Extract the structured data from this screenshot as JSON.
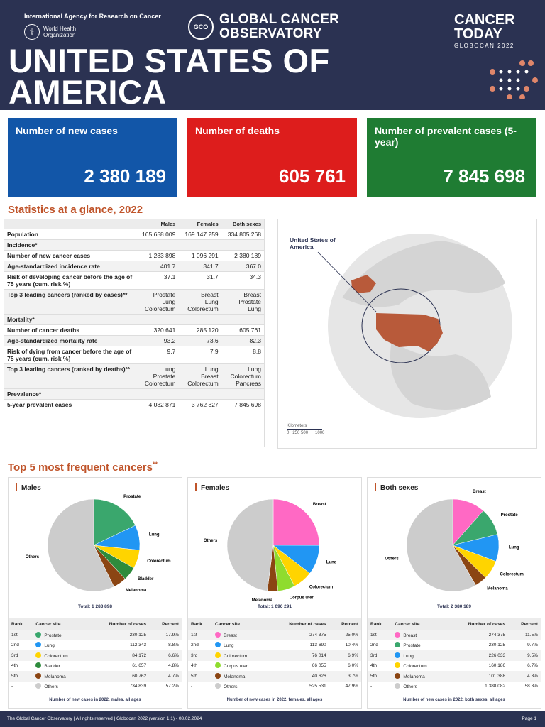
{
  "header": {
    "iarc": "International Agency for Research on Cancer",
    "who": "World Health Organization",
    "gco_logo": "GCO",
    "gco_title": "GLOBAL CANCER OBSERVATORY",
    "ct_title": "CANCER TODAY",
    "ct_sub": "GLOBOCAN 2022",
    "country": "UNITED STATES OF AMERICA"
  },
  "kpis": {
    "new_cases": {
      "label": "Number of new cases",
      "value": "2 380 189",
      "color": "#1256a8"
    },
    "deaths": {
      "label": "Number of deaths",
      "value": "605 761",
      "color": "#dd1d1c"
    },
    "prevalent": {
      "label": "Number of prevalent cases (5-year)",
      "value": "7 845 698",
      "color": "#1f7c33"
    }
  },
  "stats_title": "Statistics at a glance, 2022",
  "stats": {
    "columns": [
      "Males",
      "Females",
      "Both sexes"
    ],
    "population": {
      "label": "Population",
      "values": [
        "165 658 009",
        "169 147 259",
        "334 805 268"
      ]
    },
    "incidence_header": "Incidence*",
    "incidence": [
      {
        "label": "Number of new cancer cases",
        "values": [
          "1 283 898",
          "1 096 291",
          "2 380 189"
        ]
      },
      {
        "label": "Age-standardized incidence rate",
        "values": [
          "401.7",
          "341.7",
          "367.0"
        ]
      },
      {
        "label": "Risk of developing cancer before the age of 75 years (cum. risk %)",
        "values": [
          "37.1",
          "31.7",
          "34.3"
        ]
      },
      {
        "label": "Top 3 leading cancers (ranked by cases)**",
        "values": [
          "Prostate\nLung\nColorectum",
          "Breast\nLung\nColorectum",
          "Breast\nProstate\nLung"
        ]
      }
    ],
    "mortality_header": "Mortality*",
    "mortality": [
      {
        "label": "Number of cancer deaths",
        "values": [
          "320 641",
          "285 120",
          "605 761"
        ]
      },
      {
        "label": "Age-standardized mortality rate",
        "values": [
          "93.2",
          "73.6",
          "82.3"
        ]
      },
      {
        "label": "Risk of dying from cancer before the age of 75 years (cum. risk %)",
        "values": [
          "9.7",
          "7.9",
          "8.8"
        ]
      },
      {
        "label": "Top 3 leading cancers (ranked by deaths)**",
        "values": [
          "Lung\nProstate\nColorectum",
          "Lung\nBreast\nColorectum",
          "Lung\nColorectum\nPancreas"
        ]
      }
    ],
    "prevalence_header": "Prevalence*",
    "prevalence": [
      {
        "label": "5-year prevalent cases",
        "values": [
          "4 082 871",
          "3 762 827",
          "7 845 698"
        ]
      }
    ]
  },
  "map": {
    "label": "United States of America",
    "scale_title": "Kilometers",
    "scale_ticks": "0   250 500      1000"
  },
  "top5_title": "Top 5 most frequent cancers",
  "top5_sup": "**",
  "table_headers": [
    "Rank",
    "Cancer site",
    "Number of cases",
    "Percent"
  ],
  "panels": [
    {
      "title": "Males",
      "total": "Total: 1 283 898",
      "caption": "Number of new cases in 2022, males, all ages",
      "rows": [
        {
          "rank": "1st",
          "site": "Prostate",
          "cases": "230 125",
          "percent": "17.9%",
          "color": "#3aa76d"
        },
        {
          "rank": "2nd",
          "site": "Lung",
          "cases": "112 343",
          "percent": "8.8%",
          "color": "#2196f3"
        },
        {
          "rank": "3rd",
          "site": "Colorectum",
          "cases": "84 172",
          "percent": "6.6%",
          "color": "#ffd400"
        },
        {
          "rank": "4th",
          "site": "Bladder",
          "cases": "61 657",
          "percent": "4.8%",
          "color": "#2e8b3c"
        },
        {
          "rank": "5th",
          "site": "Melanoma",
          "cases": "60 762",
          "percent": "4.7%",
          "color": "#8b4513"
        },
        {
          "rank": "-",
          "site": "Others",
          "cases": "734 839",
          "percent": "57.2%",
          "color": "#cccccc"
        }
      ]
    },
    {
      "title": "Females",
      "total": "Total: 1 096 291",
      "caption": "Number of new cases in 2022, females, all ages",
      "rows": [
        {
          "rank": "1st",
          "site": "Breast",
          "cases": "274 375",
          "percent": "25.0%",
          "color": "#ff69c4"
        },
        {
          "rank": "2nd",
          "site": "Lung",
          "cases": "113 690",
          "percent": "10.4%",
          "color": "#2196f3"
        },
        {
          "rank": "3rd",
          "site": "Colorectum",
          "cases": "76 014",
          "percent": "6.9%",
          "color": "#ffd400"
        },
        {
          "rank": "4th",
          "site": "Corpus uteri",
          "cases": "66 055",
          "percent": "6.0%",
          "color": "#8fdc2e"
        },
        {
          "rank": "5th",
          "site": "Melanoma",
          "cases": "40 626",
          "percent": "3.7%",
          "color": "#8b4513"
        },
        {
          "rank": "-",
          "site": "Others",
          "cases": "525 531",
          "percent": "47.9%",
          "color": "#cccccc"
        }
      ]
    },
    {
      "title": "Both sexes",
      "total": "Total: 2 380 189",
      "caption": "Number of new cases in 2022, both sexes, all ages",
      "rows": [
        {
          "rank": "1st",
          "site": "Breast",
          "cases": "274 375",
          "percent": "11.5%",
          "color": "#ff69c4"
        },
        {
          "rank": "2nd",
          "site": "Prostate",
          "cases": "230 125",
          "percent": "9.7%",
          "color": "#3aa76d"
        },
        {
          "rank": "3rd",
          "site": "Lung",
          "cases": "226 033",
          "percent": "9.5%",
          "color": "#2196f3"
        },
        {
          "rank": "4th",
          "site": "Colorectum",
          "cases": "160 186",
          "percent": "6.7%",
          "color": "#ffd400"
        },
        {
          "rank": "5th",
          "site": "Melanoma",
          "cases": "101 388",
          "percent": "4.3%",
          "color": "#8b4513"
        },
        {
          "rank": "-",
          "site": "Others",
          "cases": "1 388 082",
          "percent": "58.3%",
          "color": "#cccccc"
        }
      ]
    }
  ],
  "chart_data": [
    {
      "type": "pie",
      "title": "Males",
      "categories": [
        "Prostate",
        "Lung",
        "Colorectum",
        "Bladder",
        "Melanoma",
        "Others"
      ],
      "values": [
        230125,
        112343,
        84172,
        61657,
        60762,
        734839
      ]
    },
    {
      "type": "pie",
      "title": "Females",
      "categories": [
        "Breast",
        "Lung",
        "Colorectum",
        "Corpus uteri",
        "Melanoma",
        "Others"
      ],
      "values": [
        274375,
        113690,
        76014,
        66055,
        40626,
        525531
      ]
    },
    {
      "type": "pie",
      "title": "Both sexes",
      "categories": [
        "Breast",
        "Prostate",
        "Lung",
        "Colorectum",
        "Melanoma",
        "Others"
      ],
      "values": [
        274375,
        230125,
        226033,
        160186,
        101388,
        1388082
      ]
    }
  ],
  "footer": {
    "text": "The Global Cancer Observatory | All rights reserved | Globocan 2022 (version 1.1) - 08.02.2024",
    "page": "Page 1"
  }
}
